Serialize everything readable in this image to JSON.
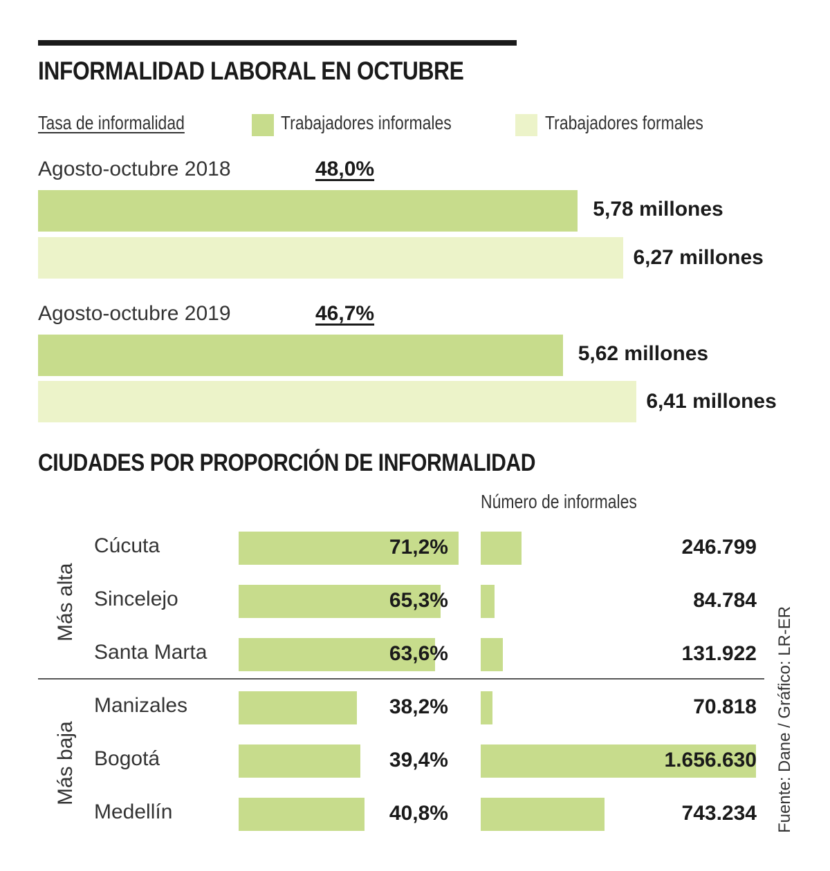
{
  "chart_data": [
    {
      "type": "bar",
      "title": "INFORMALIDAD LABORAL EN OCTUBRE",
      "legend": {
        "rate_label": "Tasa de informalidad",
        "informal_label": "Trabajadores informales",
        "formal_label": "Trabajadores formales"
      },
      "informal_color": "#c7dc8c",
      "formal_color": "#ecf3c9",
      "unit": "millones",
      "periods": [
        {
          "label": "Agosto-octubre 2018",
          "rate": "48,0%",
          "informal": 5.78,
          "informal_text": "5,78 millones",
          "formal": 6.27,
          "formal_text": "6,27 millones"
        },
        {
          "label": "Agosto-octubre 2019",
          "rate": "46,7%",
          "informal": 5.62,
          "informal_text": "5,62 millones",
          "formal": 6.41,
          "formal_text": "6,41 millones"
        }
      ]
    },
    {
      "type": "bar",
      "title": "CIUDADES POR PROPORCIÓN DE INFORMALIDAD",
      "count_header": "Número de informales",
      "bar_color": "#c7dc8c",
      "groups": [
        {
          "label": "Más alta",
          "cities": [
            {
              "name": "Cúcuta",
              "pct": 71.2,
              "pct_text": "71,2%",
              "count": 246799,
              "count_text": "246.799"
            },
            {
              "name": "Sincelejo",
              "pct": 65.3,
              "pct_text": "65,3%",
              "count": 84784,
              "count_text": "84.784"
            },
            {
              "name": "Santa Marta",
              "pct": 63.6,
              "pct_text": "63,6%",
              "count": 131922,
              "count_text": "131.922"
            }
          ]
        },
        {
          "label": "Más baja",
          "cities": [
            {
              "name": "Manizales",
              "pct": 38.2,
              "pct_text": "38,2%",
              "count": 70818,
              "count_text": "70.818"
            },
            {
              "name": "Bogotá",
              "pct": 39.4,
              "pct_text": "39,4%",
              "count": 1656630,
              "count_text": "1.656.630"
            },
            {
              "name": "Medellín",
              "pct": 40.8,
              "pct_text": "40,8%",
              "count": 743234,
              "count_text": "743.234"
            }
          ]
        }
      ]
    }
  ],
  "source": "Fuente: Dane / Gráfico: LR-ER"
}
